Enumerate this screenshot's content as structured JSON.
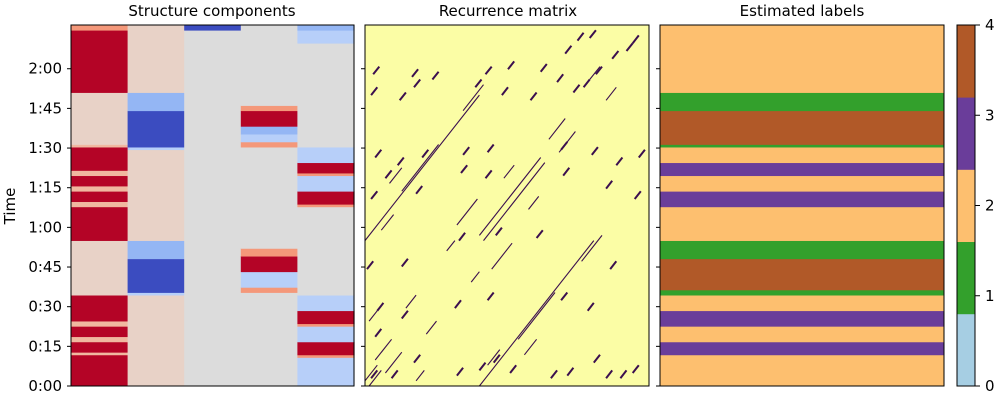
{
  "chart_data": [
    {
      "type": "heatmap",
      "title": "Structure components",
      "ylabel": "Time",
      "ylim": [
        0,
        139
      ],
      "yticks": [
        "0:00",
        "0:15",
        "0:30",
        "0:45",
        "1:00",
        "1:15",
        "1:30",
        "1:45",
        "2:00"
      ],
      "columns": 5,
      "colormap": "coolwarm",
      "colors": {
        "strong_red": "#b40426",
        "light_red": "#f0b8a0",
        "pale_red": "#e8d2c7",
        "neutral": "#dcdcdc",
        "light_blue": "#b7cff9",
        "mid_blue": "#94b6f4",
        "strong_blue": "#3b4cc0",
        "salmon": "#f4987a"
      }
    },
    {
      "type": "heatmap",
      "title": "Recurrence matrix",
      "ylim": [
        0,
        139
      ],
      "background": "#fbfda5",
      "mark_color": "#3b0f4e"
    },
    {
      "type": "heatmap",
      "title": "Estimated labels",
      "ylim": [
        0,
        139
      ],
      "colorbar_ticks": [
        "0",
        "1",
        "2",
        "3",
        "4"
      ],
      "palette": [
        "#a6cee3",
        "#33a02c",
        "#fdbf6f",
        "#6a3d9a",
        "#b15928"
      ],
      "segments": [
        {
          "start": 0,
          "end": 12,
          "label": 2
        },
        {
          "start": 12,
          "end": 17,
          "label": 3
        },
        {
          "start": 17,
          "end": 23,
          "label": 2
        },
        {
          "start": 23,
          "end": 29,
          "label": 3
        },
        {
          "start": 29,
          "end": 35,
          "label": 2
        },
        {
          "start": 35,
          "end": 37,
          "label": 1
        },
        {
          "start": 37,
          "end": 49,
          "label": 4
        },
        {
          "start": 49,
          "end": 56,
          "label": 1
        },
        {
          "start": 56,
          "end": 69,
          "label": 2
        },
        {
          "start": 69,
          "end": 75,
          "label": 3
        },
        {
          "start": 75,
          "end": 81,
          "label": 2
        },
        {
          "start": 81,
          "end": 86,
          "label": 3
        },
        {
          "start": 86,
          "end": 92,
          "label": 2
        },
        {
          "start": 92,
          "end": 93,
          "label": 1
        },
        {
          "start": 93,
          "end": 106,
          "label": 4
        },
        {
          "start": 106,
          "end": 113,
          "label": 1
        },
        {
          "start": 113,
          "end": 139,
          "label": 2
        }
      ]
    }
  ]
}
